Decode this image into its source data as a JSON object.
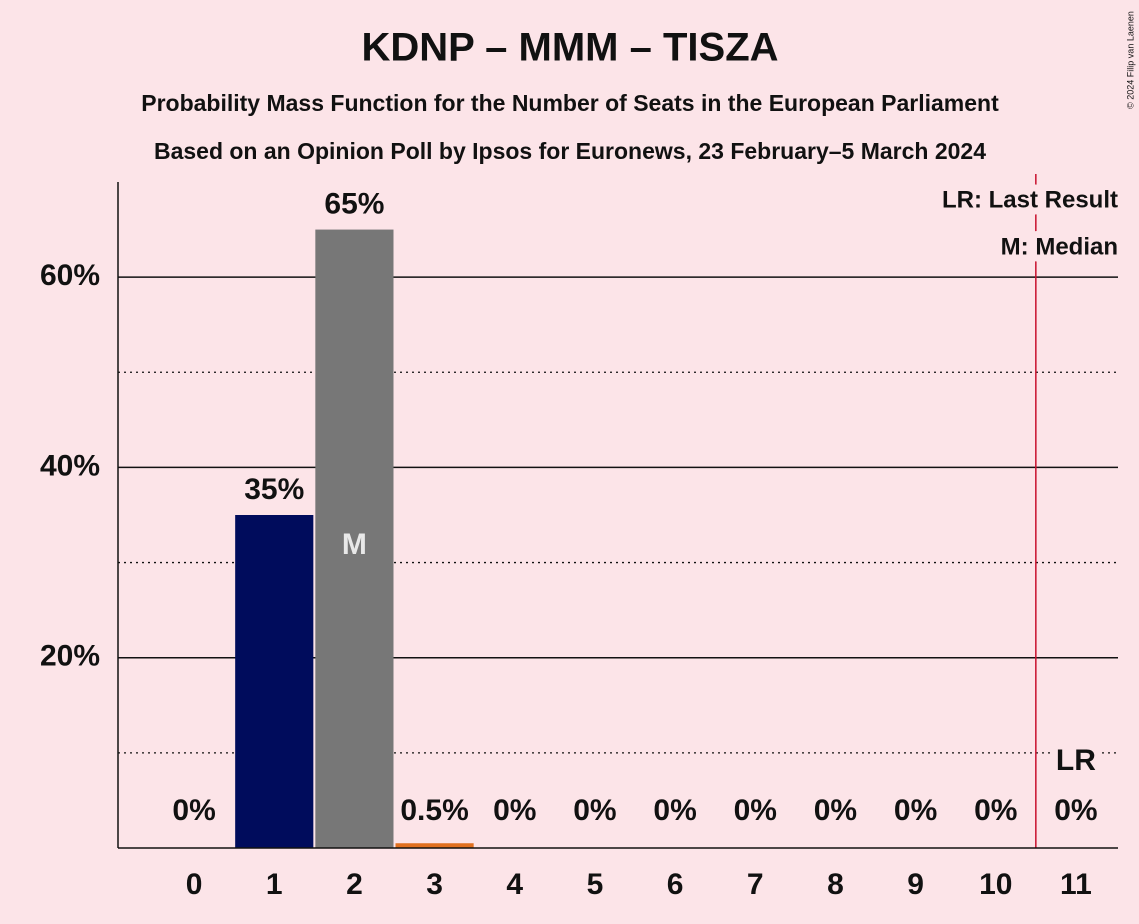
{
  "chart_data": {
    "type": "bar",
    "title": "KDNP – MMM – TISZA",
    "subtitle": "Probability Mass Function for the Number of Seats in the European Parliament",
    "subtitle2": "Based on an Opinion Poll by Ipsos for Euronews, 23 February–5 March 2024",
    "categories": [
      "0",
      "1",
      "2",
      "3",
      "4",
      "5",
      "6",
      "7",
      "8",
      "9",
      "10",
      "11"
    ],
    "values": [
      0,
      35,
      65,
      0.5,
      0,
      0,
      0,
      0,
      0,
      0,
      0,
      0
    ],
    "value_labels": [
      "0%",
      "35%",
      "65%",
      "0.5%",
      "0%",
      "0%",
      "0%",
      "0%",
      "0%",
      "0%",
      "0%",
      "0%"
    ],
    "colors": [
      "#000c5c",
      "#000c5c",
      "#777777",
      "#e07020",
      "#777777",
      "#777777",
      "#777777",
      "#777777",
      "#777777",
      "#777777",
      "#777777",
      "#777777"
    ],
    "ylim": [
      0,
      70
    ],
    "yticks": [
      {
        "value": 20,
        "label": "20%"
      },
      {
        "value": 40,
        "label": "40%"
      },
      {
        "value": 60,
        "label": "60%"
      }
    ],
    "minor_gridlines": [
      10,
      30,
      50
    ],
    "median_index": 2,
    "median_label": "M",
    "last_result_x": 10.5,
    "last_result_label": "LR",
    "legend": [
      "LR: Last Result",
      "M: Median"
    ],
    "copyright": "© 2024 Filip van Laenen"
  }
}
